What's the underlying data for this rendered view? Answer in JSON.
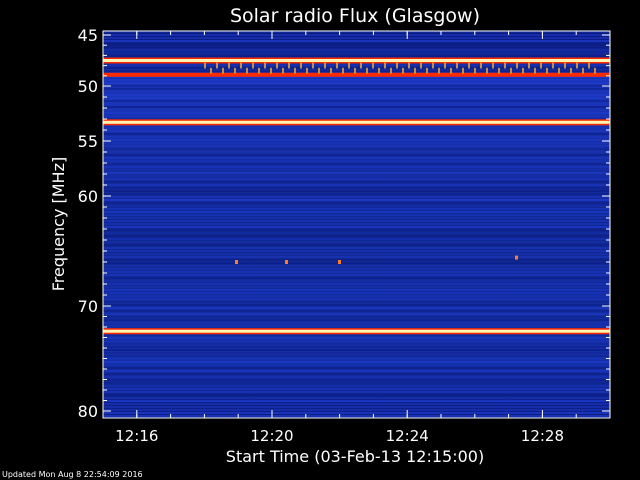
{
  "chart_data": {
    "type": "heatmap",
    "title": "Solar radio Flux (Glasgow)",
    "xlabel": "Start Time (03-Feb-13 12:15:00)",
    "ylabel": "Frequency [MHz]",
    "xlim": [
      "12:15:00",
      "12:30:00"
    ],
    "ylim": [
      80,
      45
    ],
    "x_ticks": [
      "12:16",
      "12:20",
      "12:24",
      "12:28"
    ],
    "y_ticks": [
      45,
      50,
      55,
      60,
      70,
      80
    ],
    "bright_bands_mhz": [
      47.5,
      48.9,
      53.3,
      72.4
    ],
    "colors": {
      "background": "#000000",
      "low": "#0a1c8c",
      "mid": "#1f3fd0",
      "high": "#ff2a00",
      "peak": "#fff4b0"
    },
    "footer": "Updated Mon Aug  8 22:54:09 2016"
  }
}
